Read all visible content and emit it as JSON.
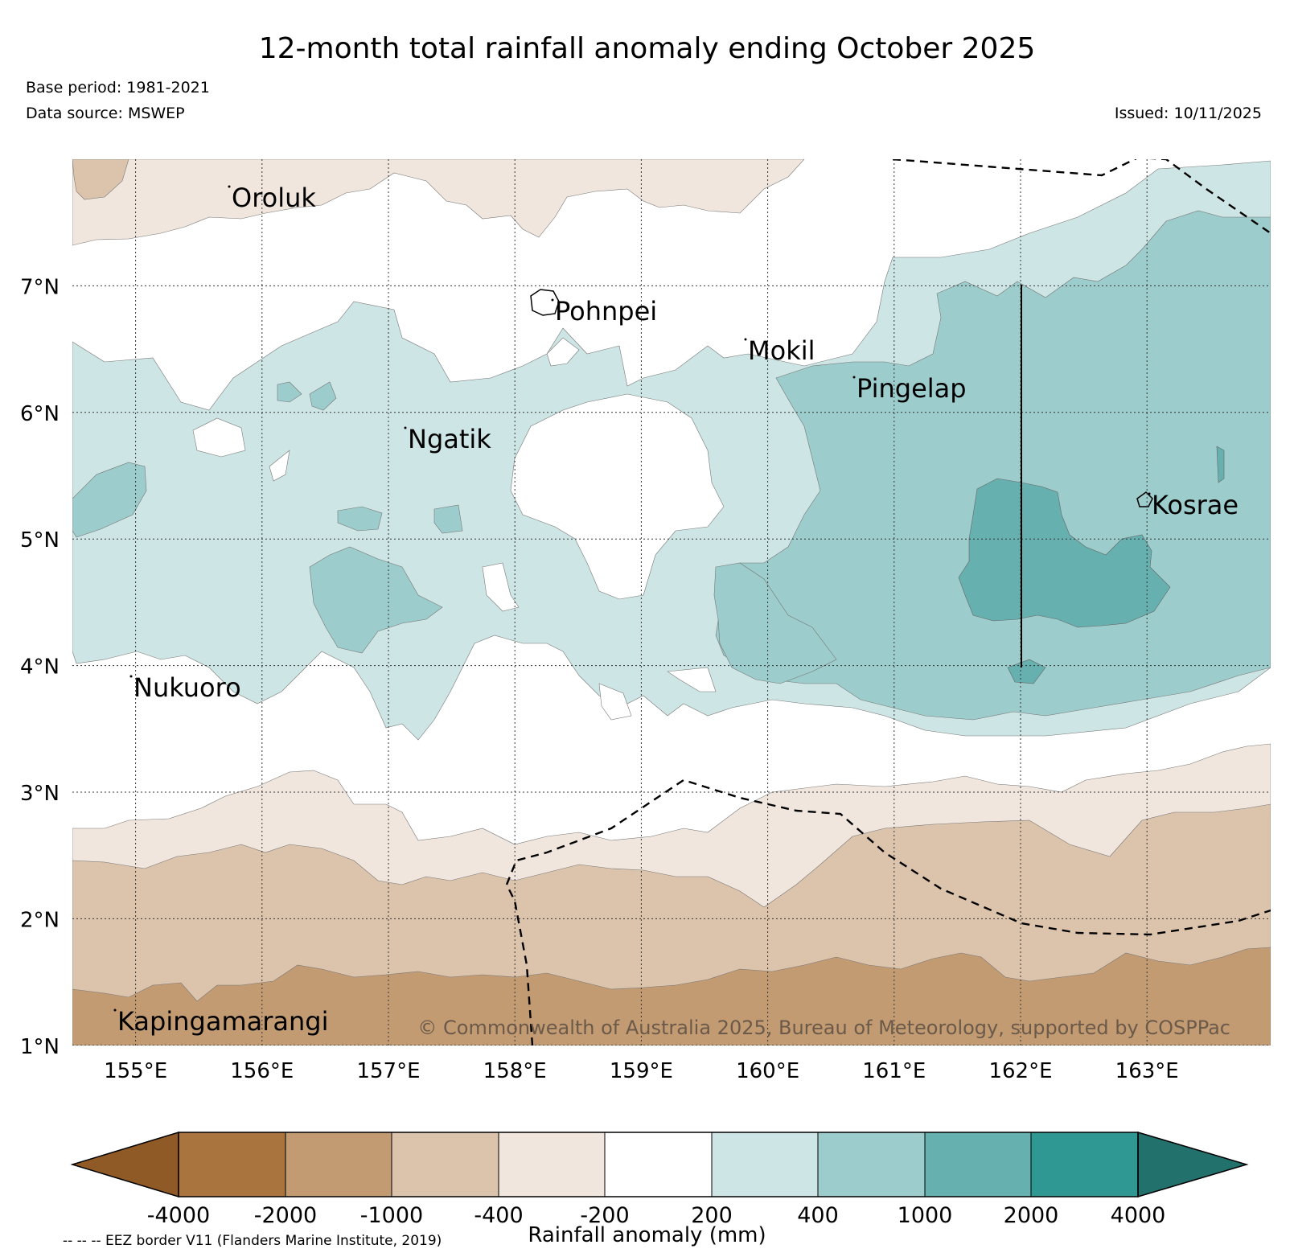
{
  "title": "12-month total rainfall anomaly ending October 2025",
  "base_period": "Base period: 1981-2021",
  "data_source": "Data source: MSWEP",
  "issued": "Issued: 10/11/2025",
  "copyright": "© Commonwealth of Australia 2025, Bureau of Meteorology, supported by COSPPac",
  "lon_ticks": [
    "155°E",
    "156°E",
    "157°E",
    "158°E",
    "159°E",
    "160°E",
    "161°E",
    "162°E",
    "163°E"
  ],
  "lat_ticks": [
    "7°N",
    "6°N",
    "5°N",
    "4°N",
    "3°N",
    "2°N",
    "1°N"
  ],
  "islands": [
    "Oroluk",
    "Pohnpei",
    "Mokil",
    "Pingelap",
    "Ngatik",
    "Kosrae",
    "Nukuoro",
    "Kapingamarangi"
  ],
  "colorbar": {
    "title": "Rainfall anomaly (mm)",
    "tick_labels": [
      "-4000",
      "-2000",
      "-1000",
      "-400",
      "-200",
      "200",
      "400",
      "1000",
      "2000",
      "4000"
    ],
    "colors": [
      "#8f5a26",
      "#aa743f",
      "#c39b72",
      "#dcc3ab",
      "#f0e6dd",
      "#ffffff",
      "#cde5e4",
      "#9ccccb",
      "#66b0af",
      "#2f9892",
      "#22716d"
    ]
  },
  "eez_note": "-- -- -- EEZ border V11 (Flanders Marine Institute, 2019)"
}
